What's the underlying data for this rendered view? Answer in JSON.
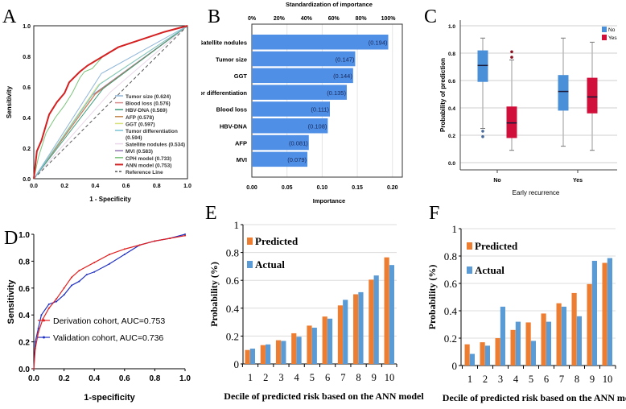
{
  "panel_letters": [
    "A",
    "B",
    "C",
    "D",
    "E",
    "F"
  ],
  "chart_data": [
    {
      "type": "line",
      "subtype": "roc",
      "xlabel": "1 - Specificity",
      "ylabel": "Sensitivity",
      "xlim": [
        0,
        1
      ],
      "ylim": [
        0,
        1
      ],
      "ticks": [
        "0.0",
        "0.2",
        "0.4",
        "0.6",
        "0.8",
        "1.0"
      ],
      "grid": false,
      "legend_position": "bottom-right",
      "series": [
        {
          "legend": [
            "Tumor size (0.624)"
          ],
          "color": "#8fb6d9",
          "points": [
            [
              0,
              0
            ],
            [
              0.44,
              0.688
            ],
            [
              1,
              1
            ]
          ]
        },
        {
          "legend": [
            "Blood loss (0.576)"
          ],
          "color": "#d98a8a",
          "points": [
            [
              0,
              0
            ],
            [
              0.4,
              0.552
            ],
            [
              1,
              1
            ]
          ]
        },
        {
          "legend": [
            "HBV-DNA (0.569)"
          ],
          "color": "#3f9b7b",
          "points": [
            [
              0,
              0
            ],
            [
              0.45,
              0.588
            ],
            [
              1,
              1
            ]
          ]
        },
        {
          "legend": [
            "AFP (0.578)"
          ],
          "color": "#c2854a",
          "points": [
            [
              0,
              0
            ],
            [
              0.4,
              0.556
            ],
            [
              1,
              1
            ]
          ]
        },
        {
          "legend": [
            "GGT (0.597)"
          ],
          "color": "#d9e27a",
          "points": [
            [
              0,
              0
            ],
            [
              0.42,
              0.614
            ],
            [
              1,
              1
            ]
          ]
        },
        {
          "legend": [
            "Tumor differentiation",
            "(0.594)"
          ],
          "color": "#78c4d4",
          "points": [
            [
              0,
              0
            ],
            [
              0.43,
              0.618
            ],
            [
              1,
              1
            ]
          ]
        },
        {
          "legend": [
            "Satellite nodules (0.534)"
          ],
          "color": "#ead8ea",
          "points": [
            [
              0,
              0
            ],
            [
              0.5,
              0.568
            ],
            [
              1,
              1
            ]
          ]
        },
        {
          "legend": [
            "MVI (0.583)"
          ],
          "color": "#9575b5",
          "points": [
            [
              0,
              0
            ],
            [
              0.38,
              0.546
            ],
            [
              1,
              1
            ]
          ]
        },
        {
          "legend": [
            "CPH model (0.733)"
          ],
          "color": "#7cc47c",
          "points": [
            [
              0,
              0
            ],
            [
              0.03,
              0.14
            ],
            [
              0.08,
              0.3
            ],
            [
              0.14,
              0.4
            ],
            [
              0.2,
              0.48
            ],
            [
              0.25,
              0.56
            ],
            [
              0.3,
              0.66
            ],
            [
              0.33,
              0.7
            ],
            [
              0.38,
              0.72
            ],
            [
              0.45,
              0.8
            ],
            [
              0.55,
              0.86
            ],
            [
              0.7,
              0.91
            ],
            [
              0.85,
              0.96
            ],
            [
              1,
              1
            ]
          ]
        },
        {
          "legend": [
            "ANN model (0.753)"
          ],
          "color": "#d42020",
          "width": 2,
          "points": [
            [
              0,
              0
            ],
            [
              0.02,
              0.18
            ],
            [
              0.05,
              0.25
            ],
            [
              0.1,
              0.42
            ],
            [
              0.15,
              0.5
            ],
            [
              0.2,
              0.56
            ],
            [
              0.23,
              0.63
            ],
            [
              0.3,
              0.7
            ],
            [
              0.35,
              0.74
            ],
            [
              0.45,
              0.8
            ],
            [
              0.55,
              0.86
            ],
            [
              0.7,
              0.91
            ],
            [
              0.85,
              0.96
            ],
            [
              1,
              1
            ]
          ]
        },
        {
          "legend": [
            "Reference Line"
          ],
          "color": "#555555",
          "dash": true,
          "points": [
            [
              0,
              0
            ],
            [
              1,
              1
            ]
          ]
        }
      ]
    },
    {
      "type": "bar",
      "orientation": "horizontal",
      "top_axis_title": "Standardization of importance",
      "top_ticks": [
        "0%",
        "20%",
        "40%",
        "60%",
        "80%",
        "100%"
      ],
      "xlabel": "Importance",
      "xticks": [
        "0.00",
        "0.05",
        "0.10",
        "0.15",
        "0.20"
      ],
      "xlim": [
        0,
        0.214
      ],
      "color": "#4f8fe6",
      "categories": [
        "Satellite nodules",
        "Tumor size",
        "GGT",
        "Tumor differentiation",
        "Blood loss",
        "HBV-DNA",
        "AFP",
        "MVI"
      ],
      "values": [
        0.194,
        0.147,
        0.144,
        0.135,
        0.111,
        0.108,
        0.081,
        0.079
      ],
      "value_labels": [
        "(0.194)",
        "(0.147)",
        "(0.144)",
        "(0.135)",
        "(0.111)",
        "(0.108)",
        "(0.081)",
        "(0.079)"
      ]
    },
    {
      "type": "box",
      "xlabel": "Early recurrence",
      "ylabel": "Probability of prediction",
      "ylim": [
        0,
        1
      ],
      "yticks": [
        "0.0",
        "0.2",
        "0.4",
        "0.6",
        "0.8",
        "1.0"
      ],
      "grid": true,
      "legend_position": "top-right",
      "categories": [
        "No",
        "Yes"
      ],
      "series": [
        {
          "name": "No",
          "color": "#4a90d9",
          "boxes": [
            {
              "min": 0.25,
              "q1": 0.59,
              "median": 0.71,
              "q3": 0.82,
              "max": 0.91,
              "outliers": [
                0.23,
                0.19
              ]
            },
            {
              "min": 0.12,
              "q1": 0.38,
              "median": 0.52,
              "q3": 0.64,
              "max": 0.91,
              "outliers": []
            }
          ]
        },
        {
          "name": "Yes",
          "color": "#d0103a",
          "boxes": [
            {
              "min": 0.09,
              "q1": 0.18,
              "median": 0.29,
              "q3": 0.41,
              "max": 0.75,
              "outliers": [
                0.77,
                0.81
              ]
            },
            {
              "min": 0.09,
              "q1": 0.36,
              "median": 0.48,
              "q3": 0.62,
              "max": 0.88,
              "outliers": []
            }
          ]
        }
      ]
    },
    {
      "type": "line",
      "subtype": "roc",
      "xlabel": "1-specificity",
      "ylabel": "Sensitivity",
      "xlim": [
        0,
        1
      ],
      "ylim": [
        0,
        1
      ],
      "ticks": [
        "0.0",
        "0.2",
        "0.4",
        "0.6",
        "0.8",
        "1.0"
      ],
      "legend_position": "bottom-right",
      "series": [
        {
          "name": "Derivation cohort, AUC=0.753",
          "color": "#e02020",
          "points": [
            [
              0,
              0
            ],
            [
              0.01,
              0.15
            ],
            [
              0.03,
              0.27
            ],
            [
              0.06,
              0.37
            ],
            [
              0.1,
              0.45
            ],
            [
              0.15,
              0.52
            ],
            [
              0.2,
              0.6
            ],
            [
              0.25,
              0.68
            ],
            [
              0.3,
              0.73
            ],
            [
              0.4,
              0.79
            ],
            [
              0.5,
              0.85
            ],
            [
              0.6,
              0.89
            ],
            [
              0.7,
              0.92
            ],
            [
              0.8,
              0.95
            ],
            [
              0.9,
              0.97
            ],
            [
              1,
              0.99
            ]
          ]
        },
        {
          "name": "Validation cohort, AUC=0.736",
          "color": "#2030c0",
          "points": [
            [
              0,
              0
            ],
            [
              0.01,
              0.2
            ],
            [
              0.03,
              0.3
            ],
            [
              0.05,
              0.4
            ],
            [
              0.1,
              0.48
            ],
            [
              0.15,
              0.5
            ],
            [
              0.2,
              0.55
            ],
            [
              0.25,
              0.62
            ],
            [
              0.3,
              0.65
            ],
            [
              0.35,
              0.7
            ],
            [
              0.4,
              0.72
            ],
            [
              0.5,
              0.78
            ],
            [
              0.6,
              0.85
            ],
            [
              0.7,
              0.92
            ],
            [
              0.8,
              0.95
            ],
            [
              0.9,
              0.97
            ],
            [
              1,
              1
            ]
          ]
        }
      ]
    },
    {
      "type": "bar",
      "xlabel": "Decile of predicted risk based on the ANN model",
      "ylabel": "Probability (%)",
      "ylim": [
        0,
        1
      ],
      "yticks": [
        "0",
        "0.2",
        "0.4",
        "0.6",
        "0.8",
        "1"
      ],
      "grid": true,
      "legend_position": "top-left",
      "categories": [
        "1",
        "2",
        "3",
        "4",
        "5",
        "6",
        "7",
        "8",
        "9",
        "10"
      ],
      "series": [
        {
          "name": "Predicted",
          "color": "#ed7d31",
          "values": [
            0.1,
            0.135,
            0.17,
            0.22,
            0.275,
            0.34,
            0.42,
            0.5,
            0.605,
            0.765
          ]
        },
        {
          "name": "Actual",
          "color": "#5b9bd5",
          "values": [
            0.11,
            0.14,
            0.165,
            0.195,
            0.26,
            0.325,
            0.46,
            0.515,
            0.635,
            0.71
          ]
        }
      ]
    },
    {
      "type": "bar",
      "xlabel": "Decile of predicted risk based on the ANN model",
      "ylabel": "Probability (%)",
      "ylim": [
        0,
        1
      ],
      "yticks": [
        "0",
        "0.2",
        "0.4",
        "0.6",
        "0.8",
        "1"
      ],
      "grid": true,
      "legend_position": "top-left",
      "categories": [
        "1",
        "2",
        "3",
        "4",
        "5",
        "6",
        "7",
        "8",
        "9",
        "10"
      ],
      "series": [
        {
          "name": "Predicted",
          "color": "#ed7d31",
          "values": [
            0.155,
            0.17,
            0.2,
            0.26,
            0.315,
            0.38,
            0.455,
            0.53,
            0.595,
            0.75
          ]
        },
        {
          "name": "Actual",
          "color": "#5b9bd5",
          "values": [
            0.085,
            0.145,
            0.43,
            0.32,
            0.18,
            0.32,
            0.43,
            0.36,
            0.765,
            0.785
          ]
        }
      ]
    }
  ]
}
